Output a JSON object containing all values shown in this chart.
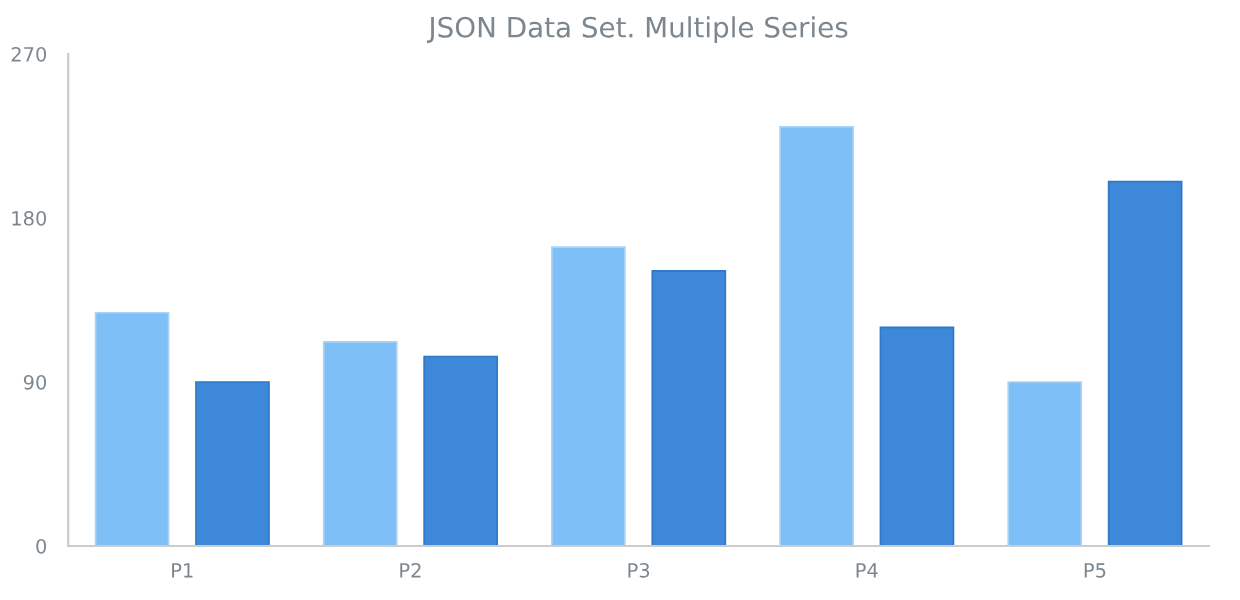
{
  "chart_data": {
    "type": "bar",
    "title": "JSON Data Set. Multiple Series",
    "categories": [
      "P1",
      "P2",
      "P3",
      "P4",
      "P5"
    ],
    "series": [
      {
        "color": "#7dbff6",
        "values": [
          128,
          112,
          164,
          230,
          90
        ]
      },
      {
        "color": "#3d88d8",
        "values": [
          90,
          104,
          151,
          120,
          200
        ]
      }
    ],
    "ylim": [
      0,
      270
    ],
    "yticks": [
      0,
      90,
      180,
      270
    ],
    "grid": false
  }
}
